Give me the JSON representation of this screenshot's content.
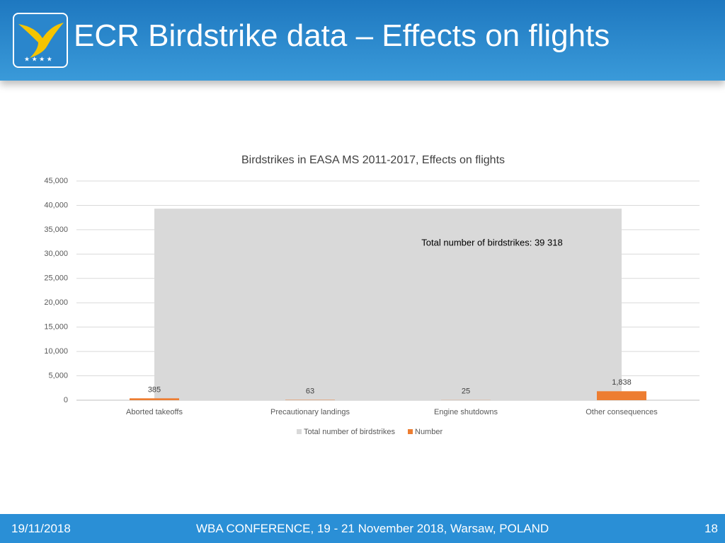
{
  "header": {
    "title": "ECR Birdstrike data – Effects on flights"
  },
  "chart_data": {
    "type": "bar",
    "title": "Birdstrikes in EASA MS 2011-2017, Effects on flights",
    "categories": [
      "Aborted takeoffs",
      "Precautionary landings",
      "Engine shutdowns",
      "Other consequences"
    ],
    "series": [
      {
        "name": "Total number of birdstrikes",
        "type": "area",
        "color": "#d9d9d9",
        "values": [
          39318,
          39318,
          39318,
          39318
        ]
      },
      {
        "name": "Number",
        "type": "bar",
        "color": "#ed7d31",
        "values": [
          385,
          63,
          25,
          1838
        ],
        "value_labels": [
          "385",
          "63",
          "25",
          "1,838"
        ]
      }
    ],
    "annotation": "Total number of birdstrikes: 39 318",
    "ylim": [
      0,
      45000
    ],
    "yticks": [
      0,
      {
        "value": 5000,
        "label": "5,000"
      },
      {
        "value": 10000,
        "label": "10,000"
      },
      {
        "value": 15000,
        "label": "15,000"
      },
      {
        "value": 20000,
        "label": "20,000"
      },
      {
        "value": 25000,
        "label": "25,000"
      },
      {
        "value": 30000,
        "label": "30,000"
      },
      {
        "value": 35000,
        "label": "35,000"
      },
      {
        "value": 40000,
        "label": "40,000"
      },
      {
        "value": 45000,
        "label": "45,000"
      }
    ],
    "grid": true,
    "legend": "bottom"
  },
  "footer": {
    "date": "19/11/2018",
    "event": "WBA CONFERENCE, 19 - 21 November 2018, Warsaw, POLAND",
    "page": "18"
  }
}
